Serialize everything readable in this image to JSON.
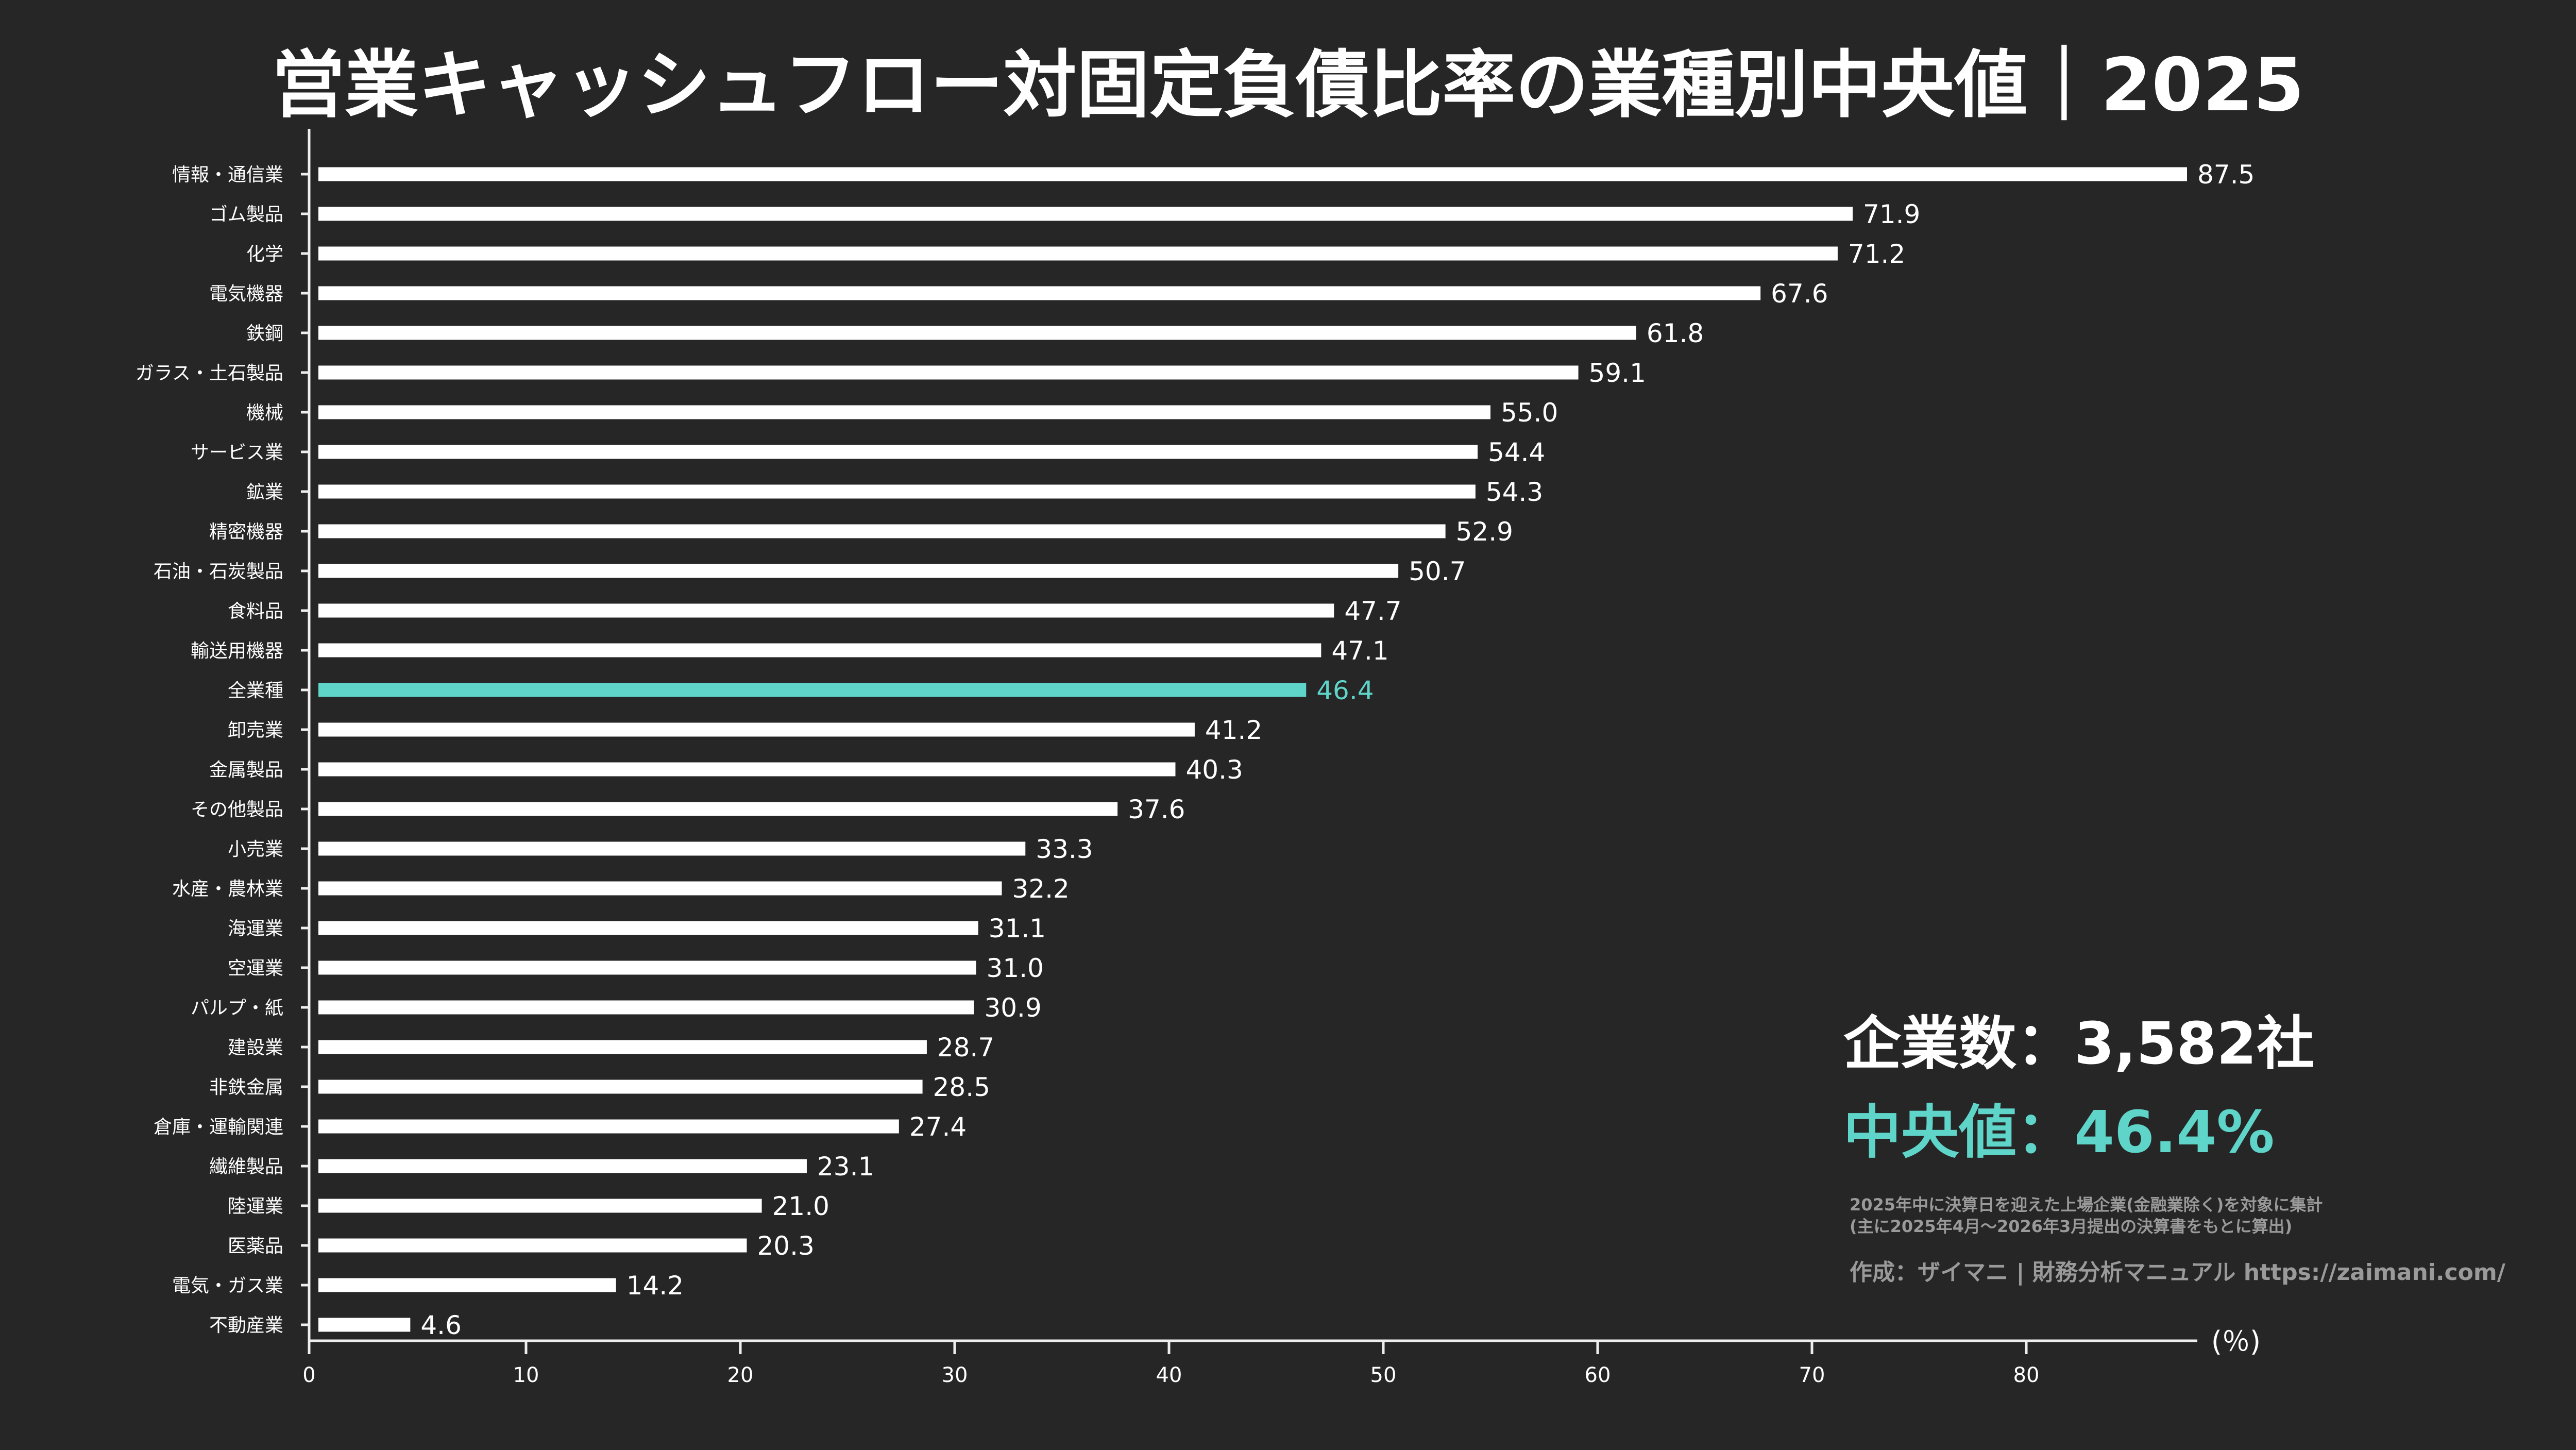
{
  "title": "営業キャッシュフロー対固定負債比率の業種別中央値｜2025",
  "annotations": {
    "company_count": "企業数：3,582社",
    "median": "中央値：46.4%",
    "note_line1": "2025年中に決算日を迎えた上場企業(金融業除く)を対象に集計",
    "note_line2": "(主に2025年4月〜2026年3月提出の決算書をもとに算出)",
    "credit": "作成：ザイマニ | 財務分析マニュアル https://zaimani.com/"
  },
  "colors": {
    "background": "#262626",
    "bar": "#ffffff",
    "highlight": "#5fd5c9",
    "text": "#ffffff",
    "note": "#9a9a9a"
  },
  "chart_data": {
    "type": "bar",
    "orientation": "horizontal",
    "title": "営業キャッシュフロー対固定負債比率の業種別中央値｜2025",
    "xlabel": "(％)",
    "xlim": [
      0,
      87.5
    ],
    "xticks": [
      0,
      10,
      20,
      30,
      40,
      50,
      60,
      70,
      80
    ],
    "grid": false,
    "highlight_category": "全業種",
    "categories": [
      "情報・通信業",
      "ゴム製品",
      "化学",
      "電気機器",
      "鉄鋼",
      "ガラス・土石製品",
      "機械",
      "サービス業",
      "鉱業",
      "精密機器",
      "石油・石炭製品",
      "食料品",
      "輸送用機器",
      "全業種",
      "卸売業",
      "金属製品",
      "その他製品",
      "小売業",
      "水産・農林業",
      "海運業",
      "空運業",
      "パルプ・紙",
      "建設業",
      "非鉄金属",
      "倉庫・運輸関連",
      "繊維製品",
      "陸運業",
      "医薬品",
      "電気・ガス業",
      "不動産業"
    ],
    "values": [
      87.5,
      71.9,
      71.2,
      67.6,
      61.8,
      59.1,
      55.0,
      54.4,
      54.3,
      52.9,
      50.7,
      47.7,
      47.1,
      46.4,
      41.2,
      40.3,
      37.6,
      33.3,
      32.2,
      31.1,
      31.0,
      30.9,
      28.7,
      28.5,
      27.4,
      23.1,
      21.0,
      20.3,
      14.2,
      4.6
    ]
  }
}
